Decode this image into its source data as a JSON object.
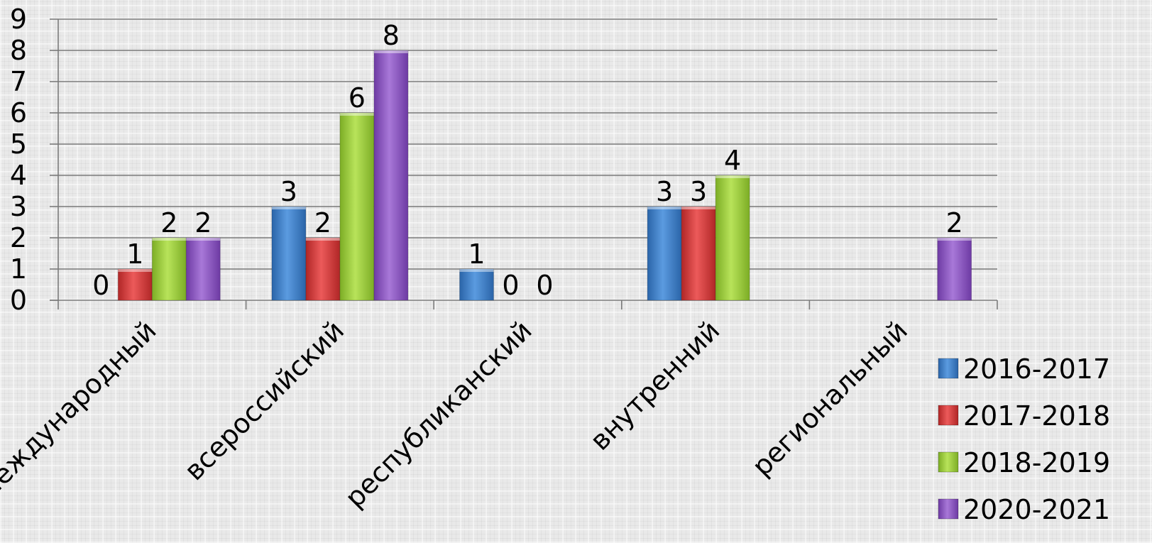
{
  "chart_data": {
    "type": "bar",
    "title": "",
    "xlabel": "",
    "ylabel": "",
    "ylim": [
      0,
      9
    ],
    "yticks": [
      "0",
      "1",
      "2",
      "3",
      "4",
      "5",
      "6",
      "7",
      "8",
      "9"
    ],
    "grid": true,
    "legend_position": "bottom-right",
    "categories": [
      "международный",
      "всероссийский",
      "республиканский",
      "внутренний",
      "региональный"
    ],
    "series": [
      {
        "name": "2016-2017",
        "color": "#3b7dc8",
        "values": [
          0,
          3,
          1,
          3,
          null
        ],
        "labels": [
          "0",
          "3",
          "1",
          "3",
          ""
        ]
      },
      {
        "name": "2017-2018",
        "color": "#d23a3a",
        "values": [
          1,
          2,
          0,
          3,
          null
        ],
        "labels": [
          "1",
          "2",
          "0",
          "3",
          ""
        ]
      },
      {
        "name": "2018-2019",
        "color": "#9bcc3c",
        "values": [
          2,
          6,
          0,
          4,
          null
        ],
        "labels": [
          "2",
          "6",
          "0",
          "4",
          ""
        ]
      },
      {
        "name": "2020-2021",
        "color": "#8d55c0",
        "values": [
          2,
          8,
          null,
          null,
          2
        ],
        "labels": [
          "2",
          "8",
          "",
          "",
          "2"
        ]
      }
    ]
  }
}
